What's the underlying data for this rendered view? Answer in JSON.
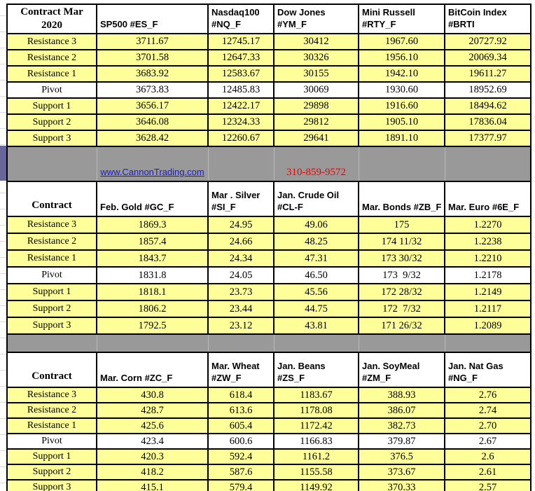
{
  "colors": {
    "row_yellow": "#ffff99",
    "separator_gray": "#999999",
    "margin_purple": "#666699",
    "link_blue": "#1a1acd",
    "phone_red": "#f20000",
    "border_black": "#000000"
  },
  "separator": {
    "link_label": "www.CannonTrading.com",
    "phone": "310-859-9572"
  },
  "tables": [
    {
      "corner": [
        "Contract  Mar",
        "2020"
      ],
      "columns": [
        [
          "SP500 #ES_F"
        ],
        [
          "Nasdaq100",
          "#NQ_F"
        ],
        [
          "Dow Jones",
          "#YM_F"
        ],
        [
          "Mini Russell",
          "#RTY_F"
        ],
        [
          "BitCoin Index",
          "#BRTI"
        ]
      ],
      "rows": [
        {
          "label": "Resistance 3",
          "values": [
            "3711.67",
            "12745.17",
            "30412",
            "1967.60",
            "20727.92"
          ]
        },
        {
          "label": "Resistance 2",
          "values": [
            "3701.58",
            "12647.33",
            "30326",
            "1956.10",
            "20069.34"
          ]
        },
        {
          "label": "Resistance 1",
          "values": [
            "3683.92",
            "12583.67",
            "30155",
            "1942.10",
            "19611.27"
          ]
        },
        {
          "label": "Pivot",
          "values": [
            "3673.83",
            "12485.83",
            "30069",
            "1930.60",
            "18952.69"
          ]
        },
        {
          "label": "Support 1",
          "values": [
            "3656.17",
            "12422.17",
            "29898",
            "1916.60",
            "18494.62"
          ]
        },
        {
          "label": "Support 2",
          "values": [
            "3646.08",
            "12324.33",
            "29812",
            "1905.10",
            "17836.04"
          ]
        },
        {
          "label": "Support 3",
          "values": [
            "3628.42",
            "12260.67",
            "29641",
            "1891.10",
            "17377.97"
          ]
        }
      ]
    },
    {
      "corner": [
        "Contract"
      ],
      "columns": [
        [
          "Feb. Gold #GC_F"
        ],
        [
          "Mar . Silver",
          "#SI_F"
        ],
        [
          "Jan. Crude Oil",
          "#CL-F"
        ],
        [
          "Mar. Bonds  #ZB_F"
        ],
        [
          "Mar.  Euro #6E_F"
        ]
      ],
      "rows": [
        {
          "label": "Resistance 3",
          "values": [
            "1869.3",
            "24.95",
            "49.06",
            "175",
            "1.2270"
          ]
        },
        {
          "label": "Resistance 2",
          "values": [
            "1857.4",
            "24.66",
            "48.25",
            "174 11/32",
            "1.2238"
          ]
        },
        {
          "label": "Resistance 1",
          "values": [
            "1843.7",
            "24.34",
            "47.31",
            "173 30/32",
            "1.2210"
          ]
        },
        {
          "label": "Pivot",
          "values": [
            "1831.8",
            "24.05",
            "46.50",
            "173  9/32",
            "1.2178"
          ]
        },
        {
          "label": "Support 1",
          "values": [
            "1818.1",
            "23.73",
            "45.56",
            "172 28/32",
            "1.2149"
          ]
        },
        {
          "label": "Support 2",
          "values": [
            "1806.2",
            "23.44",
            "44.75",
            "172  7/32",
            "1.2117"
          ]
        },
        {
          "label": "Support 3",
          "values": [
            "1792.5",
            "23.12",
            "43.81",
            "171 26/32",
            "1.2089"
          ]
        }
      ]
    },
    {
      "corner": [
        "Contract"
      ],
      "columns": [
        [
          "Mar. Corn #ZC_F"
        ],
        [
          "Mar.  Wheat",
          "#ZW_F"
        ],
        [
          "Jan.  Beans",
          "#ZS_F"
        ],
        [
          "Jan. SoyMeal",
          "#ZM_F"
        ],
        [
          "Jan. Nat Gas",
          "#NG_F"
        ]
      ],
      "rows": [
        {
          "label": "Resistance 3",
          "values": [
            "430.8",
            "618.4",
            "1183.67",
            "388.93",
            "2.76"
          ]
        },
        {
          "label": "Resistance 2",
          "values": [
            "428.7",
            "613.6",
            "1178.08",
            "386.07",
            "2.74"
          ]
        },
        {
          "label": "Resistance 1",
          "values": [
            "425.6",
            "605.4",
            "1172.42",
            "382.73",
            "2.70"
          ]
        },
        {
          "label": "Pivot",
          "values": [
            "423.4",
            "600.6",
            "1166.83",
            "379.87",
            "2.67"
          ]
        },
        {
          "label": "Support 1",
          "values": [
            "420.3",
            "592.4",
            "1161.2",
            "376.5",
            "2.6"
          ]
        },
        {
          "label": "Support 2",
          "values": [
            "418.2",
            "587.6",
            "1155.58",
            "373.67",
            "2.61"
          ]
        },
        {
          "label": "Support 3",
          "values": [
            "415.1",
            "579.4",
            "1149.92",
            "370.33",
            "2.57"
          ]
        }
      ]
    }
  ]
}
